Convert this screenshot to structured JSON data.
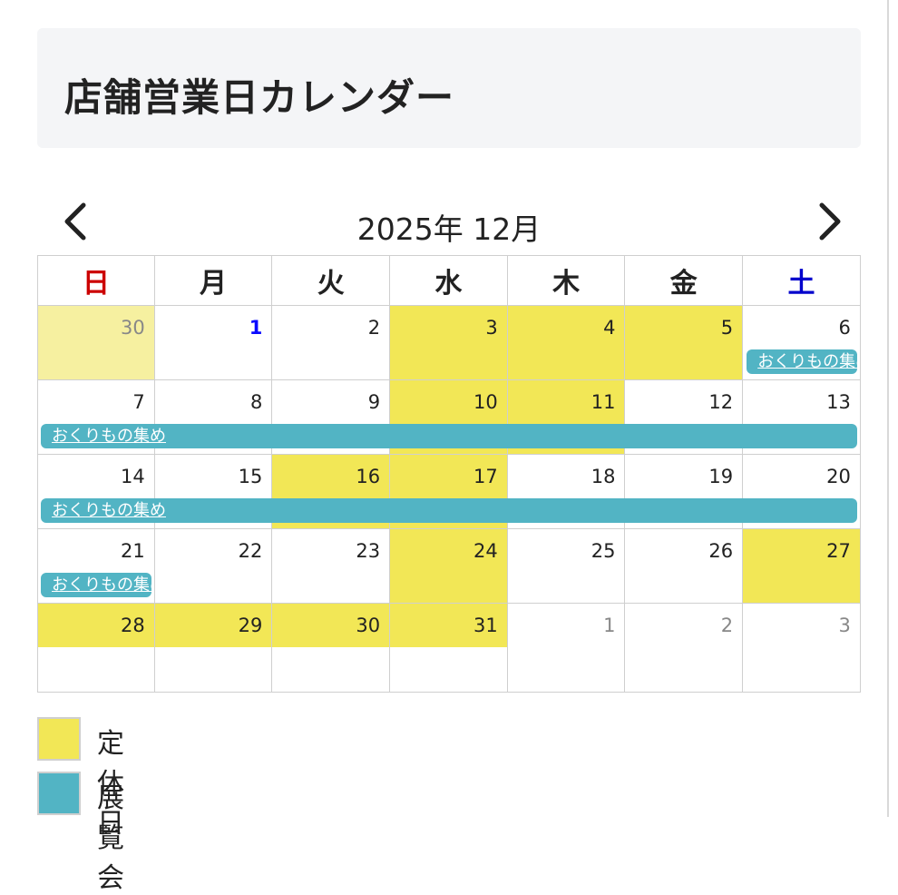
{
  "page": {
    "title": "店舗営業日カレンダー"
  },
  "nav": {
    "prev_icon": "chevron-left-icon",
    "next_icon": "chevron-right-icon",
    "month_label": "2025年 12月"
  },
  "weekdays": [
    {
      "label": "日",
      "color": "#cc0000"
    },
    {
      "label": "月",
      "color": "#222222"
    },
    {
      "label": "火",
      "color": "#222222"
    },
    {
      "label": "水",
      "color": "#222222"
    },
    {
      "label": "木",
      "color": "#222222"
    },
    {
      "label": "金",
      "color": "#222222"
    },
    {
      "label": "土",
      "color": "#0000cc"
    }
  ],
  "weeks": [
    {
      "days": [
        {
          "num": "30",
          "other": true,
          "closed": true
        },
        {
          "num": "1",
          "blue": true
        },
        {
          "num": "2"
        },
        {
          "num": "3",
          "closed": true
        },
        {
          "num": "4",
          "closed": true
        },
        {
          "num": "5",
          "closed": true
        },
        {
          "num": "6"
        }
      ],
      "events": [
        {
          "label": "おくりもの集め",
          "start": 6,
          "span": 1
        }
      ]
    },
    {
      "days": [
        {
          "num": "7"
        },
        {
          "num": "8"
        },
        {
          "num": "9"
        },
        {
          "num": "10",
          "closed": true
        },
        {
          "num": "11",
          "closed": true
        },
        {
          "num": "12"
        },
        {
          "num": "13"
        }
      ],
      "events": [
        {
          "label": "おくりもの集め",
          "start": 0,
          "span": 7
        }
      ]
    },
    {
      "days": [
        {
          "num": "14"
        },
        {
          "num": "15"
        },
        {
          "num": "16",
          "closed": true
        },
        {
          "num": "17",
          "closed": true
        },
        {
          "num": "18"
        },
        {
          "num": "19"
        },
        {
          "num": "20"
        }
      ],
      "events": [
        {
          "label": "おくりもの集め",
          "start": 0,
          "span": 7
        }
      ]
    },
    {
      "days": [
        {
          "num": "21"
        },
        {
          "num": "22"
        },
        {
          "num": "23"
        },
        {
          "num": "24",
          "closed": true
        },
        {
          "num": "25"
        },
        {
          "num": "26"
        },
        {
          "num": "27",
          "closed": true
        }
      ],
      "events": [
        {
          "label": "おくりもの集め",
          "start": 0,
          "span": 1
        }
      ]
    },
    {
      "days": [
        {
          "num": "28",
          "closed": true
        },
        {
          "num": "29",
          "closed": true
        },
        {
          "num": "30",
          "closed": true
        },
        {
          "num": "31",
          "closed": true
        },
        {
          "num": "1",
          "other": true
        },
        {
          "num": "2",
          "other": true
        },
        {
          "num": "3",
          "other": true
        }
      ],
      "events": []
    }
  ],
  "legend": [
    {
      "label": "定休日",
      "color": "#f2e756"
    },
    {
      "label": "展覧会",
      "color": "#52b4c4"
    }
  ],
  "colors": {
    "closed": "#f2e756",
    "event": "#52b4c4",
    "header_bg": "#f4f5f7"
  }
}
